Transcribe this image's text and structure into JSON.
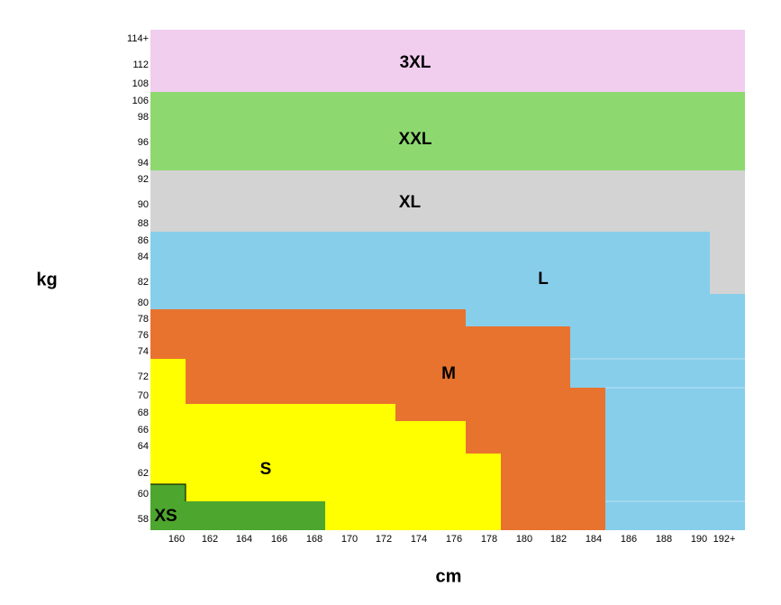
{
  "axes": {
    "y_label": "kg",
    "x_label": "cm",
    "y_ticks": [
      "114+",
      "112",
      "108",
      "106",
      "98",
      "96",
      "94",
      "92",
      "90",
      "88",
      "86",
      "84",
      "82",
      "80",
      "78",
      "76",
      "74",
      "72",
      "70",
      "68",
      "66",
      "64",
      "62",
      "60",
      "58"
    ],
    "x_ticks": [
      "160",
      "162",
      "164",
      "166",
      "168",
      "170",
      "172",
      "174",
      "176",
      "178",
      "180",
      "182",
      "184",
      "186",
      "188",
      "190",
      "192+"
    ]
  },
  "sizes": [
    "3XL",
    "XXL",
    "XL",
    "L",
    "M",
    "S",
    "XS"
  ]
}
